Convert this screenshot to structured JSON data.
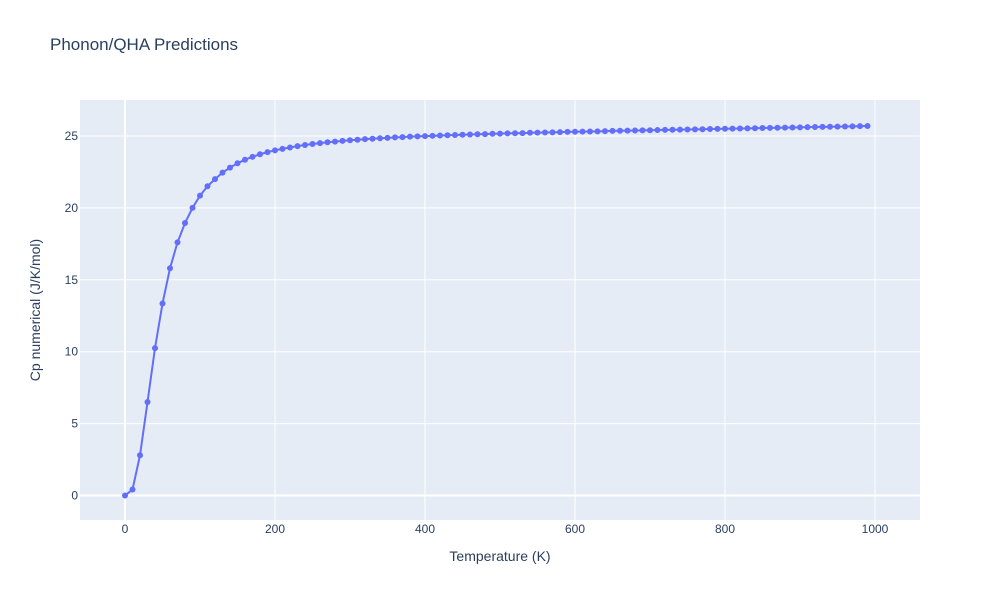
{
  "chart_data": {
    "type": "line",
    "title": "Phonon/QHA Predictions",
    "xlabel": "Temperature (K)",
    "ylabel": "Cp numerical (J/K/mol)",
    "xlim": [
      -60,
      1060
    ],
    "ylim": [
      -1.7,
      27.5
    ],
    "x_ticks": [
      0,
      200,
      400,
      600,
      800,
      1000
    ],
    "y_ticks": [
      0,
      5,
      10,
      15,
      20,
      25
    ],
    "grid": true,
    "legend": "none",
    "colors": {
      "plot_bg": "#e5ecf6",
      "grid": "#ffffff",
      "line": "#636efa",
      "text": "#2a3f5f"
    },
    "series": [
      {
        "x": [
          0,
          10,
          20,
          30,
          40,
          50,
          60,
          70,
          80,
          90,
          100,
          110,
          120,
          130,
          140,
          150,
          160,
          170,
          180,
          190,
          200,
          210,
          220,
          230,
          240,
          250,
          260,
          270,
          280,
          290,
          300,
          310,
          320,
          330,
          340,
          350,
          360,
          370,
          380,
          390,
          400,
          410,
          420,
          430,
          440,
          450,
          460,
          470,
          480,
          490,
          500,
          510,
          520,
          530,
          540,
          550,
          560,
          570,
          580,
          590,
          600,
          610,
          620,
          630,
          640,
          650,
          660,
          670,
          680,
          690,
          700,
          710,
          720,
          730,
          740,
          750,
          760,
          770,
          780,
          790,
          800,
          810,
          820,
          830,
          840,
          850,
          860,
          870,
          880,
          890,
          900,
          910,
          920,
          930,
          940,
          950,
          960,
          970,
          980,
          990
        ],
        "y": [
          0,
          0.42,
          2.8,
          6.5,
          10.25,
          13.35,
          15.8,
          17.6,
          18.95,
          20.0,
          20.85,
          21.5,
          22.0,
          22.45,
          22.8,
          23.1,
          23.35,
          23.55,
          23.73,
          23.88,
          24.0,
          24.1,
          24.2,
          24.29,
          24.37,
          24.44,
          24.5,
          24.56,
          24.61,
          24.66,
          24.7,
          24.74,
          24.78,
          24.81,
          24.84,
          24.87,
          24.9,
          24.92,
          24.95,
          24.97,
          24.99,
          25.01,
          25.03,
          25.05,
          25.07,
          25.08,
          25.1,
          25.12,
          25.13,
          25.15,
          25.16,
          25.18,
          25.19,
          25.2,
          25.22,
          25.23,
          25.24,
          25.25,
          25.27,
          25.28,
          25.29,
          25.3,
          25.31,
          25.32,
          25.34,
          25.35,
          25.36,
          25.37,
          25.38,
          25.39,
          25.4,
          25.41,
          25.42,
          25.43,
          25.44,
          25.45,
          25.46,
          25.47,
          25.48,
          25.49,
          25.5,
          25.51,
          25.52,
          25.53,
          25.54,
          25.55,
          25.56,
          25.57,
          25.58,
          25.59,
          25.6,
          25.61,
          25.62,
          25.63,
          25.64,
          25.65,
          25.66,
          25.67,
          25.68,
          25.69
        ]
      }
    ]
  }
}
